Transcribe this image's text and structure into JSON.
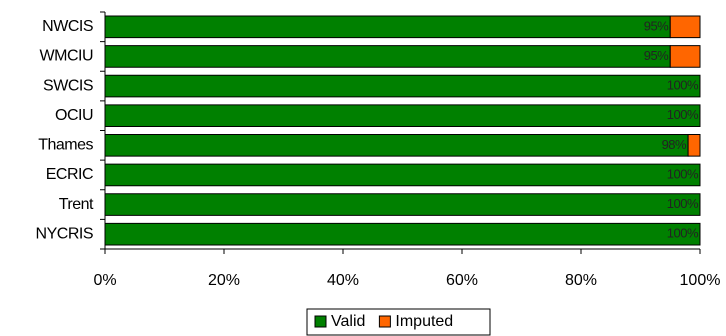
{
  "chart_data": {
    "type": "stacked-bar-horizontal",
    "categories": [
      "NWCIS",
      "WMCIU",
      "SWCIS",
      "OCIU",
      "Thames",
      "ECRIC",
      "Trent",
      "NYCRIS"
    ],
    "series": [
      {
        "name": "Valid",
        "color": "#008000",
        "values": [
          95,
          95,
          100,
          100,
          98,
          100,
          100,
          100
        ],
        "value_labels": [
          "95%",
          "95%",
          "100%",
          "100%",
          "98%",
          "100%",
          "100%",
          "100%"
        ]
      },
      {
        "name": "Imputed",
        "color": "#ff6600",
        "values": [
          5,
          5,
          0,
          0,
          2,
          0,
          0,
          0
        ]
      }
    ],
    "xlim": [
      0,
      100
    ],
    "xticks": [
      {
        "value": 0,
        "label": "0%"
      },
      {
        "value": 20,
        "label": "20%"
      },
      {
        "value": 40,
        "label": "40%"
      },
      {
        "value": 60,
        "label": "60%"
      },
      {
        "value": 80,
        "label": "80%"
      },
      {
        "value": 100,
        "label": "100%"
      }
    ],
    "legend": "bottom"
  }
}
